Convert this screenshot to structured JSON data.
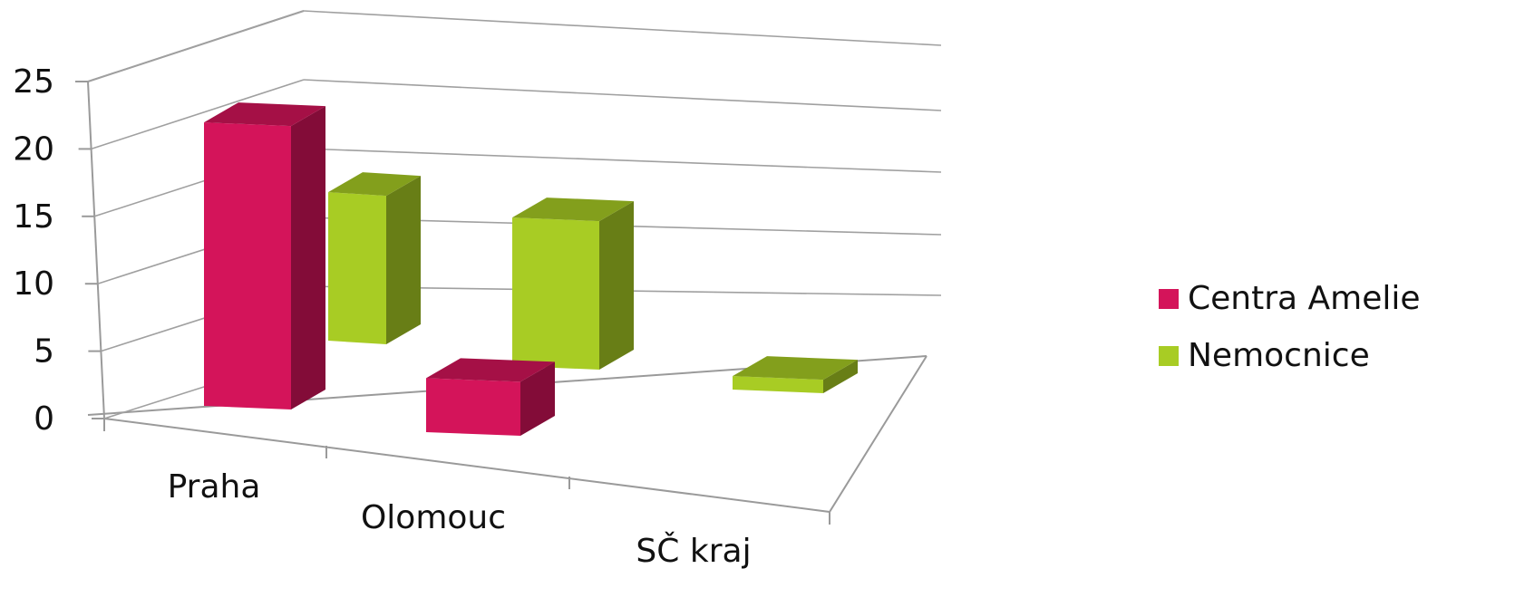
{
  "chart_data": {
    "type": "bar",
    "subtype": "3d-clustered-column",
    "categories": [
      "Praha",
      "Olomouc",
      "SČ kraj"
    ],
    "series": [
      {
        "name": "Centra Amelie",
        "values": [
          21,
          4,
          0
        ],
        "color": "#d4145a"
      },
      {
        "name": "Nemocnice",
        "values": [
          11,
          11,
          1
        ],
        "color": "#a8cc24"
      }
    ],
    "ylim": [
      0,
      25
    ],
    "yticks": [
      "0",
      "5",
      "10",
      "15",
      "20",
      "25"
    ],
    "grid": true,
    "legend_position": "right"
  }
}
